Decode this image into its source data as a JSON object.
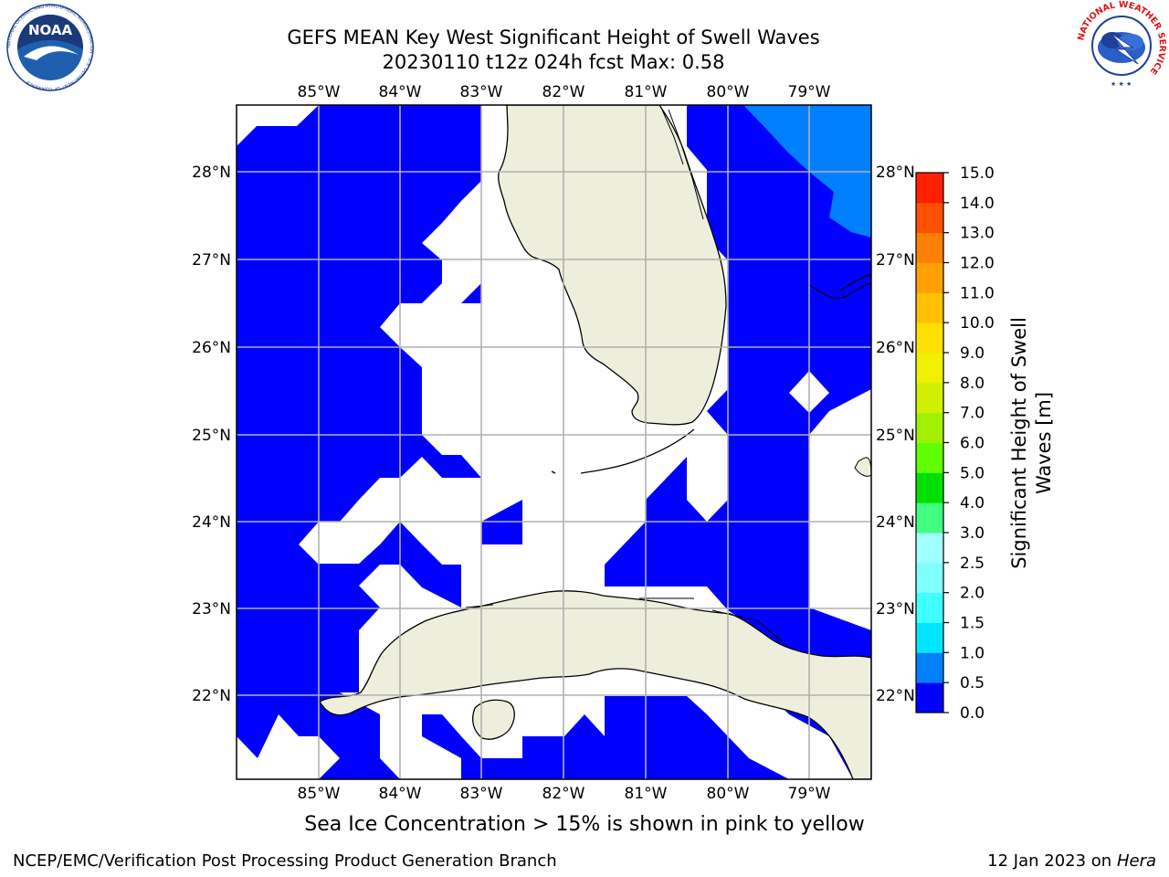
{
  "header": {
    "title_line1": "GEFS MEAN Key West Significant Height of Swell Waves",
    "title_line2": "20230110 t12z 024h fcst   Max: 0.58"
  },
  "logos": {
    "noaa_text": "NOAA",
    "noaa_ring_text": "NATIONAL OCEANIC AND ATMOSPHERIC ADMINISTRATION · U.S. DEPARTMENT OF COMMERCE",
    "nws_ring_text": "NATIONAL WEATHER SERVICE"
  },
  "map": {
    "lon_labels": [
      "85°W",
      "84°W",
      "83°W",
      "82°W",
      "81°W",
      "80°W",
      "79°W"
    ],
    "lat_labels": [
      "28°N",
      "27°N",
      "26°N",
      "25°N",
      "24°N",
      "23°N",
      "22°N"
    ],
    "colors": {
      "ocean_0_05": "#0000ff",
      "ocean_05_10": "#0080ff",
      "land": "#eeeedd",
      "grid": "#b0b0b0"
    }
  },
  "colorbar": {
    "label_line1": "Significant Height of Swell",
    "label_line2": "Waves [m]",
    "ticks": [
      "0.0",
      "0.5",
      "1.0",
      "1.5",
      "2.0",
      "2.5",
      "3.0",
      "4.0",
      "5.0",
      "6.0",
      "7.0",
      "8.0",
      "9.0",
      "10.0",
      "11.0",
      "12.0",
      "13.0",
      "14.0",
      "15.0"
    ],
    "colors": [
      "#0000ff",
      "#0080ff",
      "#00e5ff",
      "#40ffff",
      "#80ffff",
      "#a0ffff",
      "#40ff80",
      "#00e000",
      "#60ff00",
      "#a0f000",
      "#d0f000",
      "#f0f000",
      "#ffe000",
      "#ffc000",
      "#ffa000",
      "#ff8000",
      "#ff5000",
      "#ff2000",
      "#ff0000"
    ]
  },
  "note": "Sea Ice Concentration > 15% is shown in pink to yellow",
  "footer": {
    "left": "NCEP/EMC/Verification Post Processing Product Generation Branch",
    "right_prefix": "12 Jan 2023 on ",
    "right_host": "Hera"
  }
}
